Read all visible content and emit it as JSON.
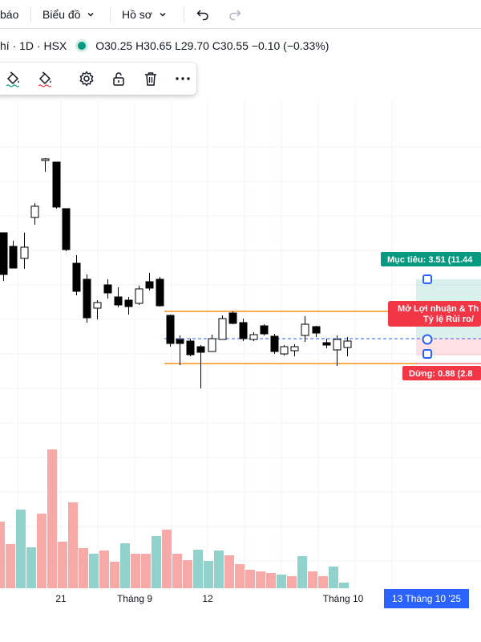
{
  "topbar": {
    "items": [
      {
        "label": "báo"
      },
      {
        "label": "Biểu đồ"
      },
      {
        "label": "Hồ sơ"
      }
    ]
  },
  "legend": {
    "symbol_info": "hí · 1D · HSX",
    "ohlc": "O30.25 H30.65 L29.70 C30.55 −0.10 (−0.33%)",
    "status_color": "#089981"
  },
  "toolbar": {
    "tools": [
      "paint-bucket-icon",
      "paint-bucket-icon",
      "gear-icon",
      "lock-icon",
      "trash-icon",
      "more-icon"
    ]
  },
  "position_tool": {
    "target_label": "Mục tiêu: 3.51 (11.44",
    "ratio_label_line1": "Mở Lợi nhuận & Th",
    "ratio_label_line2": "Tỷ lệ Rủi ro/",
    "stop_label": "Dừng: 0.88 (2.8",
    "colors": {
      "profit": "#089981",
      "loss": "#f23645",
      "handle": "#2962ff",
      "range": "#f7931a"
    }
  },
  "x_axis": {
    "labels": [
      "21",
      "Tháng 9",
      "12",
      "Tháng 10"
    ],
    "crosshair_date": "13 Tháng 10 '25"
  },
  "chart_data": {
    "type": "candlestick",
    "up_color": "#ffffff",
    "down_color": "#000000",
    "volume_up_color": "#92d2cc",
    "volume_down_color": "#f7a9a7"
  }
}
